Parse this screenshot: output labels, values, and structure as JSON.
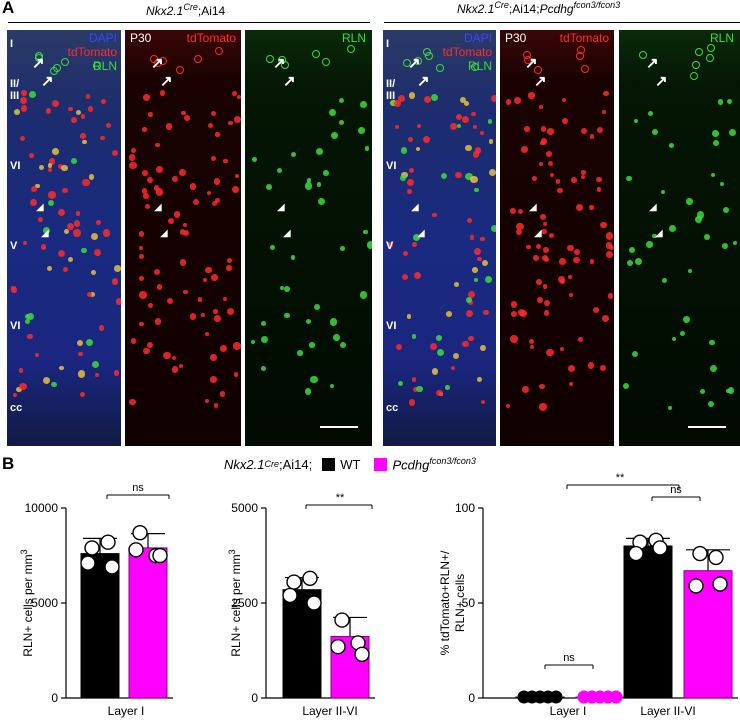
{
  "panel_a": {
    "letter": "A",
    "groups": [
      {
        "title_parts": [
          "Nkx2.1",
          "Cre",
          ";Ai14",
          "",
          ""
        ],
        "image1": {
          "line1": "DAPI",
          "line2": "tdTomato",
          "line3": "RLN"
        },
        "image2": {
          "age": "P30",
          "channel": "tdTomato"
        },
        "image3": {
          "channel": "RLN"
        },
        "layers": [
          "I",
          "II/\nIII",
          "VI",
          "V",
          "VI",
          "cc"
        ]
      },
      {
        "title_parts": [
          "Nkx2.1",
          "Cre",
          ";Ai14;",
          "Pcdhg",
          "fcon3/fcon3"
        ],
        "image1": {
          "line1": "DAPI",
          "line2": "tdTomato",
          "line3": "RLN"
        },
        "image2": {
          "age": "P30",
          "channel": "tdTomato"
        },
        "image3": {
          "channel": "RLN"
        },
        "layers": [
          "I",
          "II/\nIII",
          "VI",
          "V",
          "VI",
          "cc"
        ]
      }
    ],
    "colors": {
      "dapi": "#3a46ff",
      "tdtomato": "#ff2a2a",
      "rln": "#3cdc3c"
    }
  },
  "panel_b": {
    "letter": "B",
    "legend": {
      "prefix_main": "Nkx2.1",
      "prefix_sup": "Cre",
      "prefix_rest": ";Ai14;",
      "items": [
        {
          "label": "WT",
          "sup": "",
          "color": "#000000"
        },
        {
          "label": "Pcdhg",
          "sup": "fcon3/fcon3",
          "color": "#ff00ff"
        }
      ]
    }
  },
  "chart_data": [
    {
      "type": "bar",
      "ylabel_parts": [
        "RLN+ cells  per  mm",
        "3"
      ],
      "categories": [
        "Layer I"
      ],
      "ylim": [
        0,
        10000
      ],
      "yticks": [
        "0",
        "5000",
        "10000"
      ],
      "series": [
        {
          "color": "#000000",
          "values": [
            7600
          ],
          "err": [
            800
          ],
          "points": [
            [
              7900,
              8200,
              7100,
              6900
            ]
          ]
        },
        {
          "color": "#ff00ff",
          "values": [
            7900
          ],
          "err": [
            750
          ],
          "points": [
            [
              8700,
              7500,
              7800,
              7500
            ]
          ]
        }
      ],
      "annotations": [
        {
          "text": "ns"
        }
      ]
    },
    {
      "type": "bar",
      "ylabel_parts": [
        "RLN+ cells per mm",
        "3"
      ],
      "categories": [
        "Layer II-VI"
      ],
      "ylim": [
        0,
        5000
      ],
      "yticks": [
        "0",
        "2500",
        "5000"
      ],
      "series": [
        {
          "color": "#000000",
          "values": [
            2850
          ],
          "err": [
            320
          ],
          "points": [
            [
              3050,
              3150,
              2700,
              2500
            ]
          ]
        },
        {
          "color": "#ff00ff",
          "values": [
            1620
          ],
          "err": [
            500
          ],
          "points": [
            [
              2050,
              1450,
              1350,
              1150
            ]
          ]
        }
      ],
      "annotations": [
        {
          "text": "**"
        }
      ]
    },
    {
      "type": "bar",
      "ylabel_parts": [
        "% tdTomato+RLN+/",
        "RLN+ cells"
      ],
      "categories": [
        "Layer I",
        "Layer II-VI"
      ],
      "ylim": [
        0,
        100
      ],
      "yticks": [
        "0",
        "50",
        "100"
      ],
      "series": [
        {
          "color": "#000000",
          "values": [
            0.5,
            80
          ],
          "err": [
            0.5,
            4
          ],
          "points": [
            [
              0,
              0,
              0,
              0,
              0
            ],
            [
              82,
              83,
              76,
              79
            ]
          ]
        },
        {
          "color": "#ff00ff",
          "values": [
            0.5,
            67
          ],
          "err": [
            0.5,
            11
          ],
          "points": [
            [
              0,
              0,
              0,
              0,
              0
            ],
            [
              76,
              74,
              59,
              60
            ]
          ]
        }
      ],
      "annotations": [
        {
          "text": "ns"
        },
        {
          "text": "ns"
        },
        {
          "text": "**"
        }
      ]
    }
  ]
}
